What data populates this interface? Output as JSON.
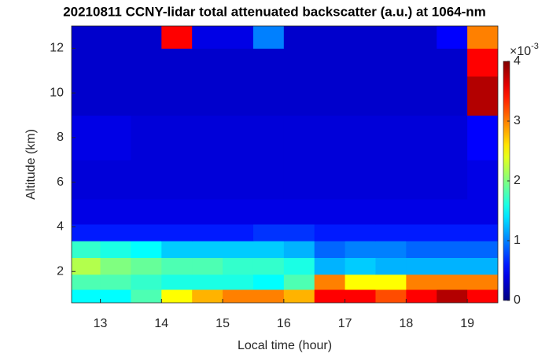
{
  "chart_data": {
    "type": "heatmap",
    "title": "20210811 CCNY-lidar total attenuated backscatter (a.u.) at 1064-nm",
    "x_label": "Local time (hour)",
    "y_label": "Altitude (km)",
    "x": [
      12.75,
      13.25,
      13.75,
      14.25,
      14.75,
      15.25,
      15.75,
      16.25,
      16.75,
      17.25,
      17.75,
      18.25,
      18.75,
      19.25
    ],
    "y": [
      0.9,
      1.5,
      2.25,
      3,
      3.75,
      4.5,
      6,
      8,
      10,
      11.5,
      12.5
    ],
    "values": [
      [
        1.5,
        1.5,
        1.8,
        2.5,
        2.8,
        3.0,
        3.0,
        2.8,
        3.5,
        3.5,
        3.2,
        3.5,
        3.8,
        3.5
      ],
      [
        1.8,
        1.8,
        1.7,
        1.6,
        1.6,
        1.6,
        1.5,
        1.8,
        3.0,
        2.5,
        2.5,
        3.0,
        3.0,
        3.0
      ],
      [
        2.2,
        2.0,
        1.9,
        1.8,
        1.8,
        1.7,
        1.7,
        1.6,
        1.2,
        1.3,
        1.2,
        1.2,
        1.2,
        1.2
      ],
      [
        1.7,
        1.6,
        1.5,
        1.3,
        1.3,
        1.3,
        1.3,
        1.2,
        0.9,
        1.0,
        1.0,
        0.9,
        0.9,
        0.9
      ],
      [
        0.6,
        0.6,
        0.6,
        0.6,
        0.6,
        0.6,
        0.7,
        0.7,
        0.6,
        0.6,
        0.6,
        0.6,
        0.6,
        0.6
      ],
      [
        0.4,
        0.4,
        0.4,
        0.4,
        0.4,
        0.4,
        0.4,
        0.4,
        0.4,
        0.4,
        0.4,
        0.4,
        0.4,
        0.4
      ],
      [
        0.35,
        0.35,
        0.35,
        0.35,
        0.35,
        0.35,
        0.35,
        0.35,
        0.35,
        0.35,
        0.35,
        0.35,
        0.35,
        0.4
      ],
      [
        0.4,
        0.4,
        0.35,
        0.35,
        0.35,
        0.35,
        0.35,
        0.35,
        0.35,
        0.35,
        0.35,
        0.35,
        0.35,
        0.5
      ],
      [
        0.3,
        0.3,
        0.3,
        0.3,
        0.3,
        0.3,
        0.3,
        0.3,
        0.3,
        0.3,
        0.3,
        0.3,
        0.3,
        3.8
      ],
      [
        0.3,
        0.3,
        0.3,
        0.3,
        0.3,
        0.3,
        0.3,
        0.3,
        0.3,
        0.3,
        0.3,
        0.3,
        0.3,
        3.5
      ],
      [
        0.3,
        0.3,
        0.3,
        3.5,
        0.4,
        0.4,
        1.0,
        0.3,
        0.3,
        0.3,
        0.3,
        0.3,
        0.5,
        3.0
      ]
    ],
    "xlim": [
      12.53,
      19.5
    ],
    "ylim": [
      0.6,
      13
    ],
    "xticks": [
      13,
      14,
      15,
      16,
      17,
      18,
      19
    ],
    "yticks": [
      2,
      4,
      6,
      8,
      10,
      12
    ],
    "colormap": "jet",
    "clim": [
      0,
      4
    ],
    "colorbar_ticks": [
      0,
      1,
      2,
      3,
      4
    ],
    "colorbar_multiplier": {
      "base": "×10",
      "exponent": "-3"
    }
  }
}
